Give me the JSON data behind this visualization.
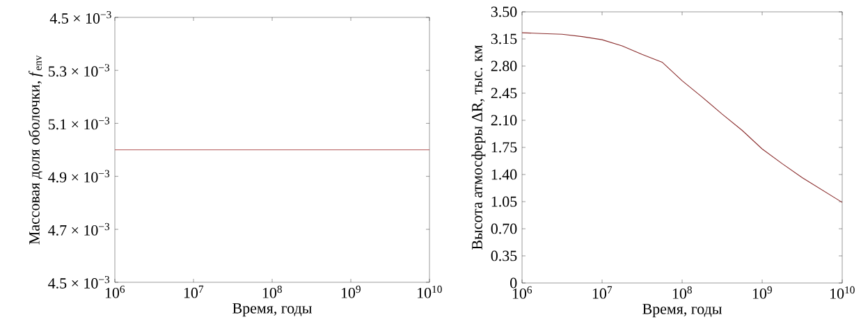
{
  "chart_data": [
    {
      "type": "line",
      "xlabel": "Время, годы",
      "ylabel": "Массовая доля оболочки, *f*$_{env}$",
      "log": "x",
      "color": "#b55a5a",
      "line_style": "solid",
      "marker": "none",
      "x": [
        1000000,
        10000000000
      ],
      "values": [
        0.005,
        0.005
      ],
      "xlim": [
        1000000,
        10000000000
      ],
      "ylim": [
        0.0045,
        0.0055
      ],
      "xticks": [
        {
          "value": 1000000,
          "label": "10$^{6}$"
        },
        {
          "value": 10000000,
          "label": "10$^{7}$"
        },
        {
          "value": 100000000,
          "label": "10$^{8}$"
        },
        {
          "value": 1000000000,
          "label": "10$^{9}$"
        },
        {
          "value": 10000000000,
          "label": "10$^{10}$"
        }
      ],
      "yticks": [
        {
          "value": 0.0045,
          "label": "4.5 × 10$^{−3}$"
        },
        {
          "value": 0.0047,
          "label": "4.7 × 10$^{−3}$"
        },
        {
          "value": 0.0049,
          "label": "4.9 × 10$^{−3}$"
        },
        {
          "value": 0.0051,
          "label": "5.1 × 10$^{−3}$"
        },
        {
          "value": 0.0053,
          "label": "5.3 × 10$^{−3}$"
        },
        {
          "value": 0.0055,
          "label": null
        }
      ],
      "annotations": [
        "4.5 × 10$^{−3}$"
      ]
    },
    {
      "type": "line",
      "xlabel": "Время, годы",
      "ylabel": "Высота атмосферы ΔR, тыс. км",
      "log": "x",
      "color": "#8b2e2e",
      "line_style": "solid",
      "marker": "none",
      "x": [
        1000000,
        1778279,
        3162278,
        5623413,
        10000000,
        17782794,
        31622777,
        56234133,
        100000000,
        177827941,
        316227766,
        562341325,
        1000000000,
        1778279410,
        3162277660,
        5623413252,
        10000000000
      ],
      "values": [
        3.23,
        3.22,
        3.21,
        3.18,
        3.14,
        3.06,
        2.95,
        2.85,
        2.61,
        2.4,
        2.18,
        1.97,
        1.73,
        1.54,
        1.36,
        1.2,
        1.04
      ],
      "xlim": [
        1000000,
        10000000000
      ],
      "ylim": [
        0,
        3.5
      ],
      "xticks": [
        {
          "value": 1000000,
          "label": "10$^{6}$"
        },
        {
          "value": 10000000,
          "label": "10$^{7}$"
        },
        {
          "value": 100000000,
          "label": "10$^{8}$"
        },
        {
          "value": 1000000000,
          "label": "10$^{9}$"
        },
        {
          "value": 10000000000,
          "label": "10$^{10}$"
        }
      ],
      "yticks": [
        0,
        0.35,
        {
          "value": 0.7,
          "label": "0.70"
        },
        1.05,
        {
          "value": 1.4,
          "label": "1.40"
        },
        1.75,
        {
          "value": 2.1,
          "label": "2.10"
        },
        2.45,
        {
          "value": 2.8,
          "label": "2.80"
        },
        3.15,
        {
          "value": 3.5,
          "label": "3.50"
        }
      ]
    }
  ]
}
